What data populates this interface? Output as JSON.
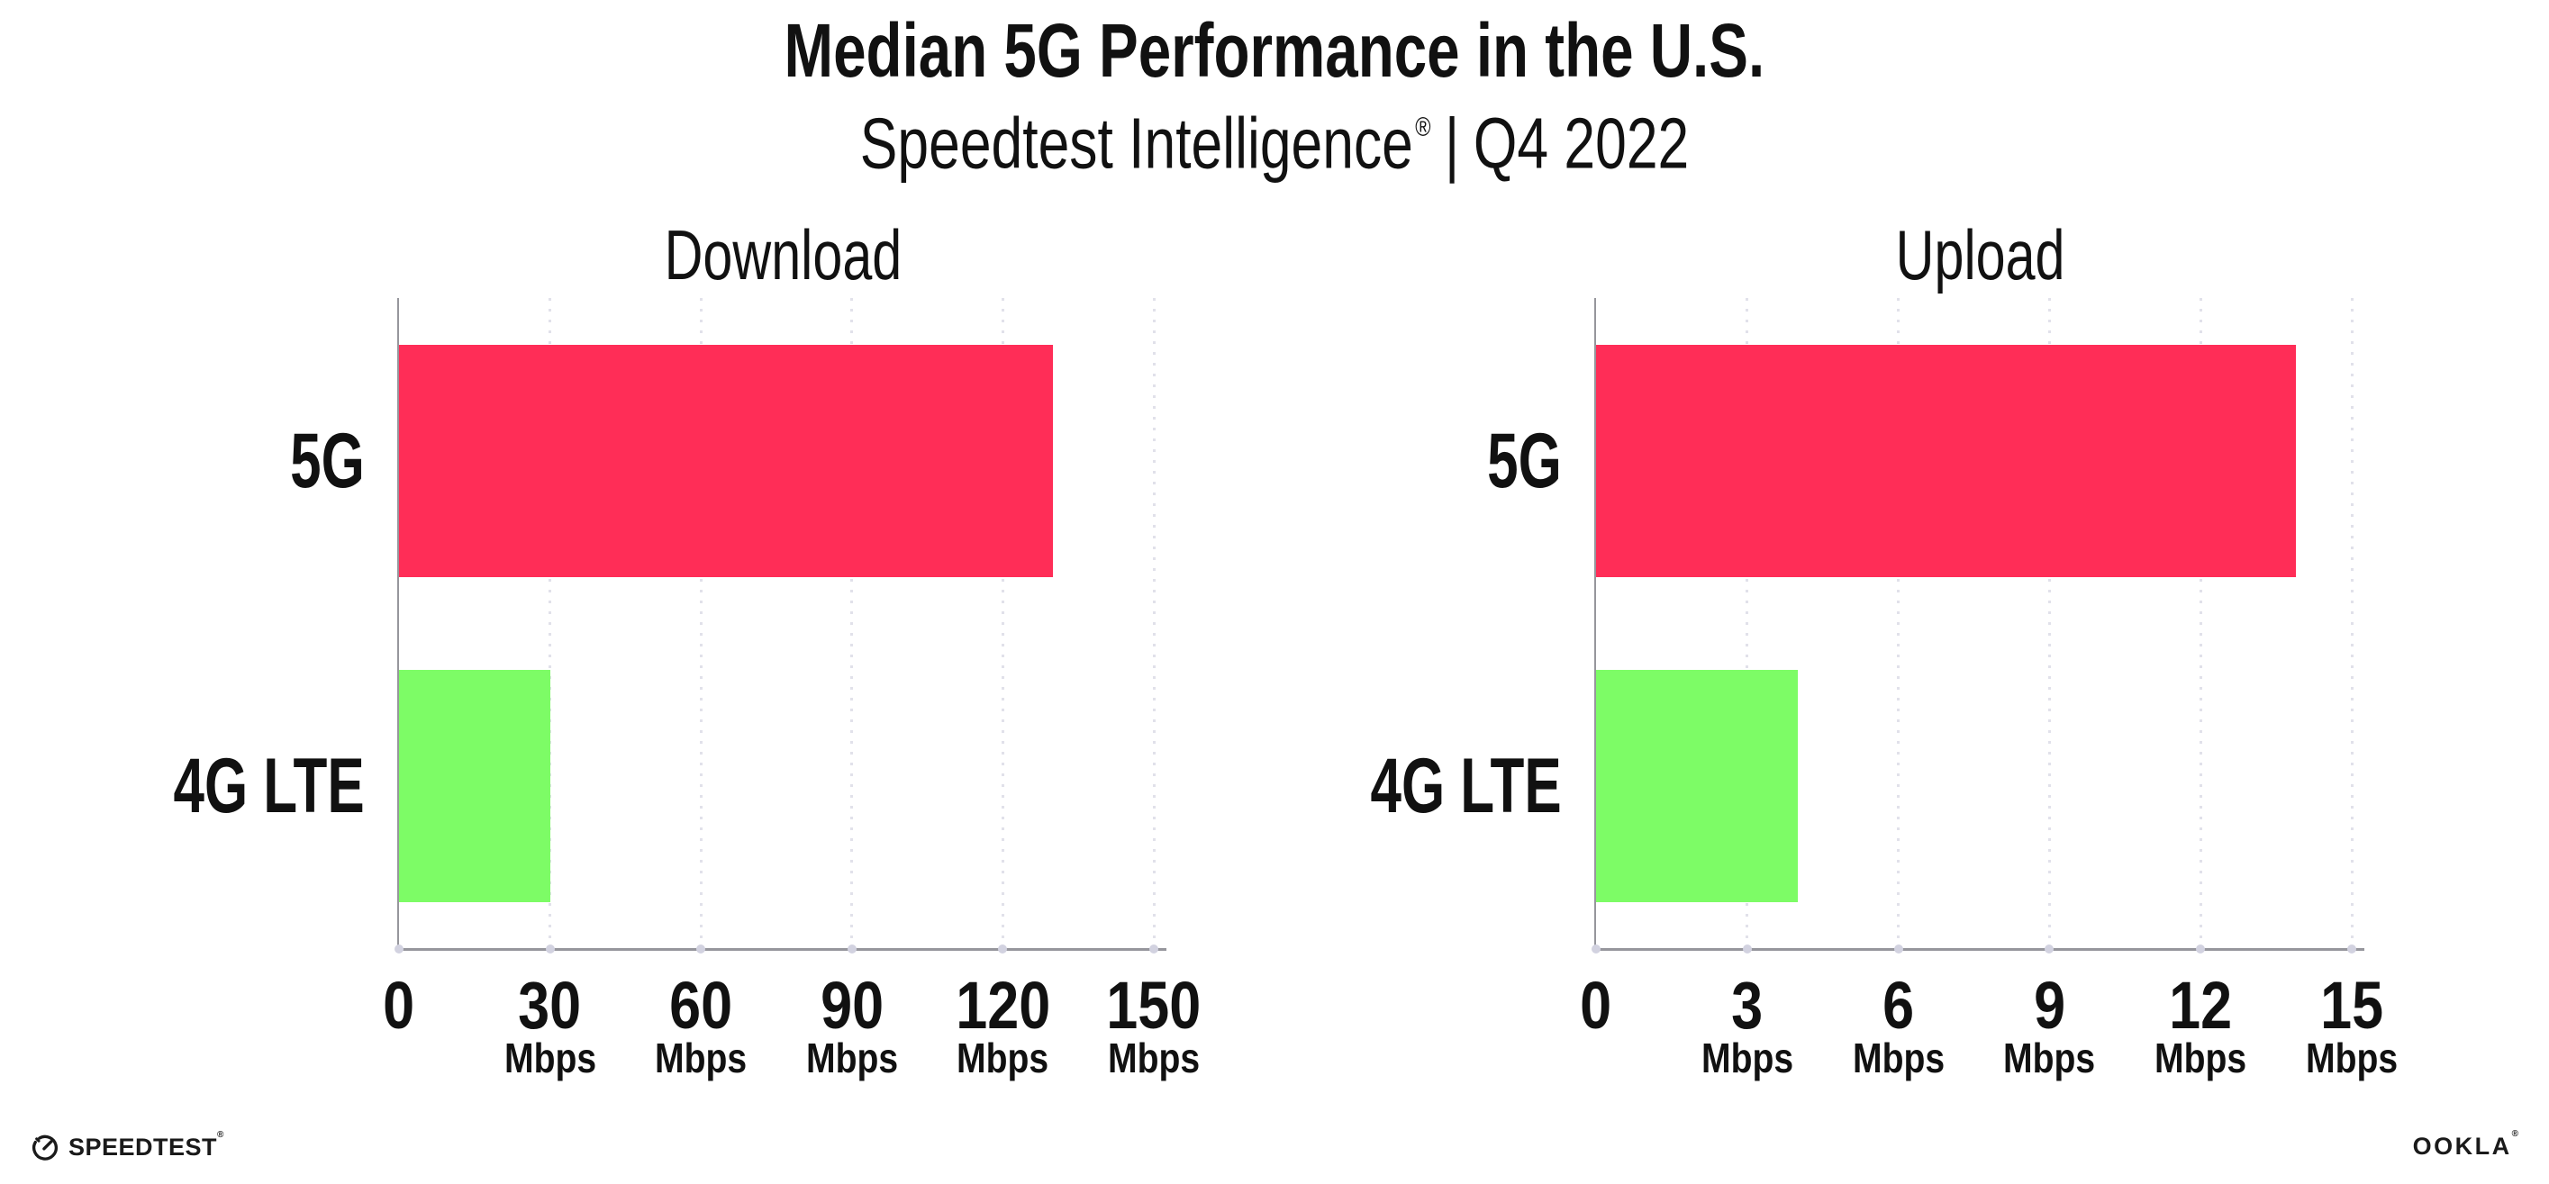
{
  "header": {
    "title": "Median 5G Performance in the U.S.",
    "subtitle_brand": "Speedtest Intelligence",
    "subtitle_reg": "®",
    "subtitle_separator": "|",
    "subtitle_period": "Q4 2022"
  },
  "footer": {
    "speedtest_label": "SPEEDTEST",
    "speedtest_reg": "®",
    "ookla_label": "OOKLA",
    "ookla_reg": "®"
  },
  "colors": {
    "bar_5g": "#FF2D57",
    "bar_4g_lte": "#7DFC66",
    "gridline": "#E1E1EA",
    "axis": "#96969C",
    "axis_dot": "#D2D2E0",
    "text": "#111111"
  },
  "chart_data": [
    {
      "type": "bar",
      "orientation": "horizontal",
      "title": "Download",
      "categories": [
        "5G",
        "4G LTE"
      ],
      "values": [
        130,
        30
      ],
      "unit": "Mbps",
      "xticks": [
        0,
        30,
        60,
        90,
        120,
        150
      ],
      "xlim": [
        0,
        152.5
      ],
      "bar_colors": [
        "#FF2D57",
        "#7DFC66"
      ],
      "grid": true,
      "tick_unit_label": "Mbps",
      "legend": "none"
    },
    {
      "type": "bar",
      "orientation": "horizontal",
      "title": "Upload",
      "categories": [
        "5G",
        "4G LTE"
      ],
      "values": [
        13.9,
        4
      ],
      "unit": "Mbps",
      "xticks": [
        0,
        3,
        6,
        9,
        12,
        15
      ],
      "xlim": [
        0,
        15.25
      ],
      "bar_colors": [
        "#FF2D57",
        "#7DFC66"
      ],
      "grid": true,
      "tick_unit_label": "Mbps",
      "legend": "none"
    }
  ]
}
